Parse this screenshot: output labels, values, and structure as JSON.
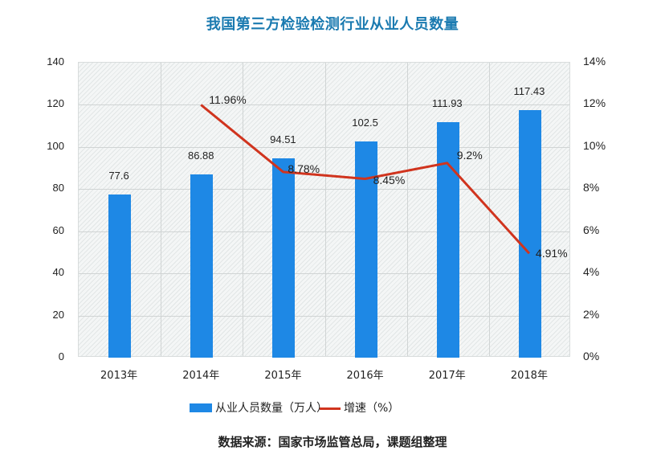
{
  "title": "我国第三方检验检测行业从业人员数量",
  "legend": {
    "bar_label": "从业人员数量（万人）",
    "line_label": "增速（%）"
  },
  "source": "数据来源：国家市场监管总局，课题组整理",
  "y_axis_left": {
    "ticks": [
      "0",
      "20",
      "40",
      "60",
      "80",
      "100",
      "120",
      "140"
    ]
  },
  "y_axis_right": {
    "ticks": [
      "0%",
      "2%",
      "4%",
      "6%",
      "8%",
      "10%",
      "12%",
      "14%"
    ]
  },
  "x_axis": {
    "ticks": [
      "2013年",
      "2014年",
      "2015年",
      "2016年",
      "2017年",
      "2018年"
    ]
  },
  "colors": {
    "bar": "#1e88e5",
    "line": "#d0341e",
    "title": "#1a7ab0"
  },
  "bar_labels": [
    "77.6",
    "86.88",
    "94.51",
    "102.5",
    "111.93",
    "117.43"
  ],
  "line_labels": [
    "11.96%",
    "8.78%",
    "8.45%",
    "9.2%",
    "4.91%"
  ],
  "chart_data": {
    "type": "bar",
    "title": "我国第三方检验检测行业从业人员数量",
    "categories": [
      "2013年",
      "2014年",
      "2015年",
      "2016年",
      "2017年",
      "2018年"
    ],
    "series": [
      {
        "name": "从业人员数量（万人）",
        "type": "bar",
        "axis": "left",
        "values": [
          77.6,
          86.88,
          94.51,
          102.5,
          111.93,
          117.43
        ]
      },
      {
        "name": "增速（%）",
        "type": "line",
        "axis": "right",
        "values": [
          null,
          11.96,
          8.78,
          8.45,
          9.2,
          4.91
        ]
      }
    ],
    "xlabel": "",
    "ylabel": "",
    "ylim": [
      0,
      140
    ],
    "y2lim": [
      0,
      14
    ],
    "y2_format": "percent",
    "grid": true,
    "legend_position": "bottom",
    "annotation": "数据来源：国家市场监管总局，课题组整理"
  }
}
